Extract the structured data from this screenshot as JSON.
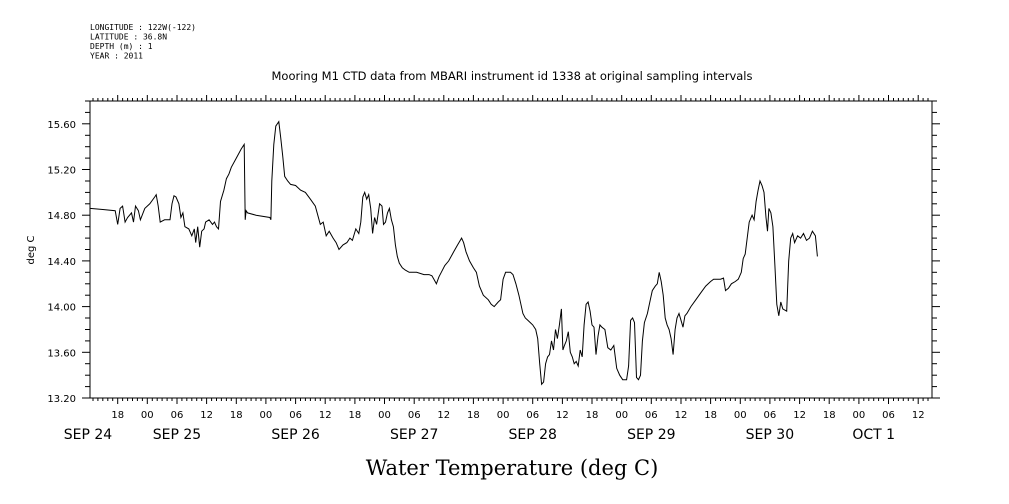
{
  "header": {
    "meta_lines": [
      "LONGITUDE : 122W(-122)",
      "LATITUDE : 36.8N",
      "DEPTH (m) : 1",
      "YEAR : 2011"
    ],
    "title": "Mooring M1 CTD data from MBARI instrument id 1338 at original sampling intervals"
  },
  "chart_data": {
    "type": "line",
    "title": "Mooring M1 CTD data from MBARI instrument id 1338 at original sampling intervals",
    "xlabel": "Water Temperature (deg C)",
    "ylabel": "deg C",
    "units": "deg C",
    "x_units": "hours since 2011-09-24 00:00",
    "xlim": [
      12.4,
      182.8
    ],
    "ylim": [
      13.2,
      15.8
    ],
    "y_ticks": [
      "13.20",
      "13.60",
      "14.00",
      "14.40",
      "14.80",
      "15.20",
      "15.60"
    ],
    "x_hour_ticks": [
      {
        "h": 18,
        "label": "18"
      },
      {
        "h": 24,
        "label": "00"
      },
      {
        "h": 30,
        "label": "06"
      },
      {
        "h": 36,
        "label": "12"
      },
      {
        "h": 42,
        "label": "18"
      },
      {
        "h": 48,
        "label": "00"
      },
      {
        "h": 54,
        "label": "06"
      },
      {
        "h": 60,
        "label": "12"
      },
      {
        "h": 66,
        "label": "18"
      },
      {
        "h": 72,
        "label": "00"
      },
      {
        "h": 78,
        "label": "06"
      },
      {
        "h": 84,
        "label": "12"
      },
      {
        "h": 90,
        "label": "18"
      },
      {
        "h": 96,
        "label": "00"
      },
      {
        "h": 102,
        "label": "06"
      },
      {
        "h": 108,
        "label": "12"
      },
      {
        "h": 114,
        "label": "18"
      },
      {
        "h": 120,
        "label": "00"
      },
      {
        "h": 126,
        "label": "06"
      },
      {
        "h": 132,
        "label": "12"
      },
      {
        "h": 138,
        "label": "18"
      },
      {
        "h": 144,
        "label": "00"
      },
      {
        "h": 150,
        "label": "06"
      },
      {
        "h": 156,
        "label": "12"
      },
      {
        "h": 162,
        "label": "18"
      },
      {
        "h": 168,
        "label": "00"
      },
      {
        "h": 174,
        "label": "06"
      },
      {
        "h": 180,
        "label": "12"
      }
    ],
    "x_day_labels": [
      {
        "h": 12,
        "label": "SEP 24"
      },
      {
        "h": 30,
        "label": "SEP 25"
      },
      {
        "h": 54,
        "label": "SEP 26"
      },
      {
        "h": 78,
        "label": "SEP 27"
      },
      {
        "h": 102,
        "label": "SEP 28"
      },
      {
        "h": 126,
        "label": "SEP 29"
      },
      {
        "h": 150,
        "label": "SEP 30"
      },
      {
        "h": 171,
        "label": "OCT  1"
      }
    ],
    "series": [
      {
        "name": "",
        "points": [
          [
            12.4,
            14.86
          ],
          [
            15,
            14.85
          ],
          [
            17.5,
            14.84
          ],
          [
            18,
            14.72
          ],
          [
            18.5,
            14.86
          ],
          [
            19,
            14.88
          ],
          [
            19.5,
            14.74
          ],
          [
            20,
            14.78
          ],
          [
            20.8,
            14.82
          ],
          [
            21.2,
            14.74
          ],
          [
            21.6,
            14.88
          ],
          [
            22.2,
            14.84
          ],
          [
            22.6,
            14.76
          ],
          [
            23.5,
            14.86
          ],
          [
            24.5,
            14.9
          ],
          [
            25.5,
            14.96
          ],
          [
            25.8,
            14.98
          ],
          [
            26.2,
            14.88
          ],
          [
            26.6,
            14.74
          ],
          [
            27.5,
            14.76
          ],
          [
            28.6,
            14.76
          ],
          [
            29,
            14.9
          ],
          [
            29.4,
            14.97
          ],
          [
            29.8,
            14.96
          ],
          [
            30.4,
            14.9
          ],
          [
            30.8,
            14.78
          ],
          [
            31.2,
            14.82
          ],
          [
            31.6,
            14.7
          ],
          [
            32.4,
            14.68
          ],
          [
            33,
            14.62
          ],
          [
            33.5,
            14.68
          ],
          [
            33.8,
            14.56
          ],
          [
            34.2,
            14.7
          ],
          [
            34.6,
            14.52
          ],
          [
            35,
            14.66
          ],
          [
            35.5,
            14.68
          ],
          [
            35.8,
            14.74
          ],
          [
            36.5,
            14.76
          ],
          [
            37.2,
            14.72
          ],
          [
            37.6,
            14.74
          ],
          [
            38,
            14.7
          ],
          [
            38.4,
            14.68
          ],
          [
            38.8,
            14.92
          ],
          [
            39.5,
            15.02
          ],
          [
            40,
            15.12
          ],
          [
            40.5,
            15.16
          ],
          [
            41,
            15.22
          ],
          [
            42,
            15.3
          ],
          [
            43,
            15.38
          ],
          [
            43.6,
            15.42
          ],
          [
            43.8,
            14.76
          ],
          [
            44,
            14.84
          ],
          [
            44.3,
            14.82
          ],
          [
            46,
            14.8
          ],
          [
            48.8,
            14.78
          ],
          [
            49,
            14.76
          ],
          [
            49.2,
            15.1
          ],
          [
            49.6,
            15.42
          ],
          [
            50,
            15.58
          ],
          [
            50.6,
            15.62
          ],
          [
            51,
            15.48
          ],
          [
            51.4,
            15.32
          ],
          [
            51.8,
            15.14
          ],
          [
            52.4,
            15.1
          ],
          [
            53,
            15.07
          ],
          [
            54,
            15.06
          ],
          [
            55,
            15.02
          ],
          [
            56,
            15.0
          ],
          [
            57,
            14.94
          ],
          [
            58,
            14.88
          ],
          [
            59,
            14.72
          ],
          [
            59.6,
            14.74
          ],
          [
            60.2,
            14.62
          ],
          [
            60.8,
            14.66
          ],
          [
            61.6,
            14.6
          ],
          [
            62.2,
            14.56
          ],
          [
            62.8,
            14.5
          ],
          [
            63.6,
            14.54
          ],
          [
            64.4,
            14.56
          ],
          [
            65,
            14.6
          ],
          [
            65.5,
            14.58
          ],
          [
            66.2,
            14.68
          ],
          [
            66.8,
            14.64
          ],
          [
            67.2,
            14.74
          ],
          [
            67.6,
            14.96
          ],
          [
            68,
            15.0
          ],
          [
            68.4,
            14.94
          ],
          [
            68.8,
            14.98
          ],
          [
            69.2,
            14.86
          ],
          [
            69.6,
            14.64
          ],
          [
            70,
            14.78
          ],
          [
            70.4,
            14.72
          ],
          [
            71,
            14.9
          ],
          [
            71.5,
            14.88
          ],
          [
            71.8,
            14.72
          ],
          [
            72.2,
            14.74
          ],
          [
            72.6,
            14.82
          ],
          [
            73,
            14.86
          ],
          [
            73.4,
            14.76
          ],
          [
            73.8,
            14.7
          ],
          [
            74.2,
            14.54
          ],
          [
            74.6,
            14.44
          ],
          [
            75,
            14.38
          ],
          [
            75.6,
            14.34
          ],
          [
            76.2,
            14.32
          ],
          [
            77,
            14.3
          ],
          [
            78.5,
            14.3
          ],
          [
            80,
            14.28
          ],
          [
            81,
            14.28
          ],
          [
            81.6,
            14.27
          ],
          [
            82,
            14.24
          ],
          [
            82.5,
            14.2
          ],
          [
            83,
            14.26
          ],
          [
            83.5,
            14.3
          ],
          [
            84.2,
            14.36
          ],
          [
            85,
            14.4
          ],
          [
            86,
            14.48
          ],
          [
            86.8,
            14.54
          ],
          [
            87.6,
            14.6
          ],
          [
            88,
            14.56
          ],
          [
            88.5,
            14.48
          ],
          [
            89.2,
            14.4
          ],
          [
            90,
            14.34
          ],
          [
            90.6,
            14.3
          ],
          [
            91.2,
            14.18
          ],
          [
            92,
            14.1
          ],
          [
            93,
            14.06
          ],
          [
            93.6,
            14.02
          ],
          [
            94.2,
            14.0
          ],
          [
            95,
            14.04
          ],
          [
            95.5,
            14.06
          ],
          [
            96,
            14.24
          ],
          [
            96.5,
            14.3
          ],
          [
            97.5,
            14.3
          ],
          [
            98,
            14.28
          ],
          [
            98.6,
            14.2
          ],
          [
            99.2,
            14.1
          ],
          [
            99.6,
            14.02
          ],
          [
            100,
            13.94
          ],
          [
            100.5,
            13.9
          ],
          [
            101,
            13.88
          ],
          [
            101.5,
            13.86
          ],
          [
            102,
            13.84
          ],
          [
            102.6,
            13.8
          ],
          [
            103,
            13.72
          ],
          [
            103.4,
            13.5
          ],
          [
            103.8,
            13.32
          ],
          [
            104.2,
            13.34
          ],
          [
            104.6,
            13.5
          ],
          [
            105,
            13.56
          ],
          [
            105.4,
            13.58
          ],
          [
            105.8,
            13.7
          ],
          [
            106.2,
            13.62
          ],
          [
            106.6,
            13.8
          ],
          [
            107,
            13.72
          ],
          [
            107.4,
            13.84
          ],
          [
            107.8,
            13.98
          ],
          [
            108.1,
            13.62
          ],
          [
            108.4,
            13.66
          ],
          [
            108.8,
            13.7
          ],
          [
            109.2,
            13.78
          ],
          [
            109.6,
            13.6
          ],
          [
            110,
            13.56
          ],
          [
            110.4,
            13.5
          ],
          [
            110.8,
            13.52
          ],
          [
            111.2,
            13.48
          ],
          [
            111.6,
            13.62
          ],
          [
            112,
            13.56
          ],
          [
            112.4,
            13.84
          ],
          [
            112.8,
            14.02
          ],
          [
            113.2,
            14.04
          ],
          [
            113.6,
            13.96
          ],
          [
            114,
            13.84
          ],
          [
            114.4,
            13.82
          ],
          [
            114.8,
            13.58
          ],
          [
            115.2,
            13.74
          ],
          [
            115.6,
            13.84
          ],
          [
            116,
            13.82
          ],
          [
            116.6,
            13.8
          ],
          [
            117.2,
            13.64
          ],
          [
            117.8,
            13.62
          ],
          [
            118.4,
            13.66
          ],
          [
            119,
            13.46
          ],
          [
            119.6,
            13.4
          ],
          [
            120.2,
            13.36
          ],
          [
            121,
            13.36
          ],
          [
            121.4,
            13.48
          ],
          [
            121.8,
            13.88
          ],
          [
            122.2,
            13.9
          ],
          [
            122.6,
            13.86
          ],
          [
            123,
            13.38
          ],
          [
            123.4,
            13.36
          ],
          [
            123.8,
            13.4
          ],
          [
            124.2,
            13.7
          ],
          [
            124.6,
            13.86
          ],
          [
            125.2,
            13.94
          ],
          [
            125.8,
            14.06
          ],
          [
            126.2,
            14.14
          ],
          [
            126.8,
            14.18
          ],
          [
            127.2,
            14.2
          ],
          [
            127.6,
            14.3
          ],
          [
            128,
            14.22
          ],
          [
            128.4,
            14.1
          ],
          [
            128.8,
            13.9
          ],
          [
            129.2,
            13.84
          ],
          [
            129.6,
            13.8
          ],
          [
            130,
            13.72
          ],
          [
            130.4,
            13.58
          ],
          [
            130.8,
            13.8
          ],
          [
            131.2,
            13.9
          ],
          [
            131.6,
            13.94
          ],
          [
            132,
            13.88
          ],
          [
            132.4,
            13.82
          ],
          [
            132.8,
            13.92
          ],
          [
            133.2,
            13.94
          ],
          [
            134,
            14.0
          ],
          [
            135,
            14.06
          ],
          [
            136,
            14.12
          ],
          [
            137,
            14.18
          ],
          [
            138,
            14.22
          ],
          [
            138.6,
            14.24
          ],
          [
            140,
            14.24
          ],
          [
            140.6,
            14.25
          ],
          [
            141,
            14.14
          ],
          [
            141.6,
            14.16
          ],
          [
            142.2,
            14.2
          ],
          [
            143,
            14.22
          ],
          [
            143.6,
            14.24
          ],
          [
            144.2,
            14.3
          ],
          [
            144.6,
            14.42
          ],
          [
            145,
            14.46
          ],
          [
            145.4,
            14.6
          ],
          [
            145.8,
            14.74
          ],
          [
            146.4,
            14.8
          ],
          [
            146.8,
            14.76
          ],
          [
            147.2,
            14.92
          ],
          [
            147.6,
            15.02
          ],
          [
            148,
            15.1
          ],
          [
            148.4,
            15.06
          ],
          [
            148.8,
            15.0
          ],
          [
            149.2,
            14.78
          ],
          [
            149.5,
            14.66
          ],
          [
            149.8,
            14.86
          ],
          [
            150.2,
            14.82
          ],
          [
            150.6,
            14.7
          ],
          [
            151,
            14.36
          ],
          [
            151.4,
            14.02
          ],
          [
            151.8,
            13.92
          ],
          [
            152.2,
            14.04
          ],
          [
            152.6,
            13.98
          ],
          [
            153.4,
            13.96
          ],
          [
            153.8,
            14.4
          ],
          [
            154.2,
            14.6
          ],
          [
            154.6,
            14.64
          ],
          [
            155,
            14.56
          ],
          [
            155.6,
            14.62
          ],
          [
            156.2,
            14.6
          ],
          [
            156.8,
            14.64
          ],
          [
            157.4,
            14.58
          ],
          [
            158,
            14.6
          ],
          [
            158.6,
            14.66
          ],
          [
            159.2,
            14.62
          ],
          [
            159.6,
            14.44
          ]
        ]
      }
    ]
  }
}
